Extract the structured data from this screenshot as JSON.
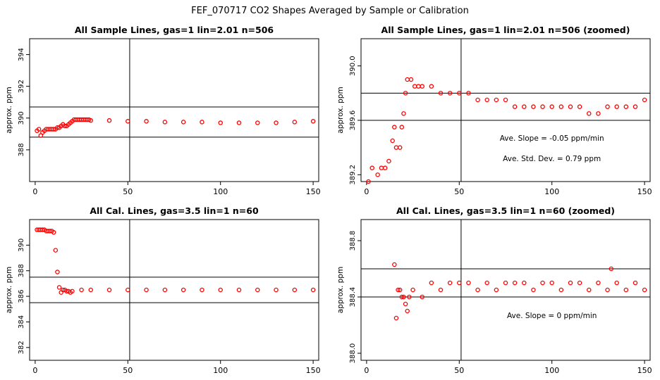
{
  "figure_title": "FEF_070717  CO2 Shapes Averaged by Sample or Calibration",
  "chart_data": [
    {
      "type": "scatter",
      "title": "All Sample Lines, gas=1 lin=2.01 n=506",
      "ylabel": "approx. ppm",
      "xlim": [
        -3,
        153
      ],
      "ylim": [
        386,
        395
      ],
      "xticks": [
        0,
        50,
        100,
        150
      ],
      "xtick_labels": [
        "0",
        "50",
        "100",
        "150"
      ],
      "yticks": [
        388,
        390,
        392,
        394
      ],
      "ytick_labels": [
        "388",
        "390",
        "392",
        "394"
      ],
      "hlines": [
        388.8,
        390.7
      ],
      "vline": 51,
      "marker_color": "#ff0000",
      "series": [
        {
          "x": [
            1,
            2,
            3,
            4,
            5,
            6,
            7,
            8,
            9,
            10,
            11,
            12,
            13,
            14,
            15,
            16,
            17,
            18,
            19,
            20,
            21,
            22,
            23,
            24,
            25,
            26,
            27,
            28,
            29,
            30,
            40,
            50,
            60,
            70,
            80,
            90,
            100,
            110,
            120,
            130,
            140,
            150
          ],
          "y": [
            389.2,
            389.3,
            388.9,
            389.1,
            389.2,
            389.3,
            389.3,
            389.3,
            389.3,
            389.3,
            389.3,
            389.4,
            389.4,
            389.5,
            389.6,
            389.5,
            389.5,
            389.6,
            389.7,
            389.8,
            389.9,
            389.9,
            389.9,
            389.9,
            389.9,
            389.9,
            389.9,
            389.9,
            389.9,
            389.85,
            389.85,
            389.8,
            389.8,
            389.75,
            389.75,
            389.75,
            389.7,
            389.7,
            389.7,
            389.7,
            389.75,
            389.8
          ]
        }
      ],
      "annotations": []
    },
    {
      "type": "scatter",
      "title": "All Sample Lines, gas=1 lin=2.01 n=506 (zoomed)",
      "ylabel": "approx. ppm",
      "xlim": [
        -3,
        153
      ],
      "ylim": [
        389.15,
        390.2
      ],
      "xticks": [
        0,
        50,
        100,
        150
      ],
      "xtick_labels": [
        "0",
        "50",
        "100",
        "150"
      ],
      "yticks": [
        389.2,
        389.6,
        390.0
      ],
      "ytick_labels": [
        "389.2",
        "389.6",
        "390.0"
      ],
      "hlines": [
        389.8,
        389.6
      ],
      "vline": 51,
      "marker_color": "#ff0000",
      "series": [
        {
          "x": [
            1,
            3,
            6,
            8,
            10,
            12,
            14,
            15,
            16,
            18,
            19,
            20,
            21,
            22,
            24,
            26,
            28,
            30,
            35,
            40,
            45,
            50,
            55,
            60,
            65,
            70,
            75,
            80,
            85,
            90,
            95,
            100,
            105,
            110,
            115,
            120,
            125,
            130,
            135,
            140,
            145,
            150
          ],
          "y": [
            389.15,
            389.25,
            389.2,
            389.25,
            389.25,
            389.3,
            389.45,
            389.55,
            389.4,
            389.4,
            389.55,
            389.65,
            389.8,
            389.9,
            389.9,
            389.85,
            389.85,
            389.85,
            389.85,
            389.8,
            389.8,
            389.8,
            389.8,
            389.75,
            389.75,
            389.75,
            389.75,
            389.7,
            389.7,
            389.7,
            389.7,
            389.7,
            389.7,
            389.7,
            389.7,
            389.65,
            389.65,
            389.7,
            389.7,
            389.7,
            389.7,
            389.75
          ]
        }
      ],
      "annotations": [
        {
          "text": "Ave. Slope = -0.05 ppm/min",
          "x": 100,
          "y": 389.45
        },
        {
          "text": "Ave. Std. Dev. = 0.79 ppm",
          "x": 100,
          "y": 389.3
        }
      ]
    },
    {
      "type": "scatter",
      "title": "All Cal. Lines, gas=3.5 lin=1 n=60",
      "ylabel": "approx. ppm",
      "xlim": [
        -3,
        153
      ],
      "ylim": [
        381,
        392
      ],
      "xticks": [
        0,
        50,
        100,
        150
      ],
      "xtick_labels": [
        "0",
        "50",
        "100",
        "150"
      ],
      "yticks": [
        382,
        384,
        386,
        388,
        390
      ],
      "ytick_labels": [
        "382",
        "384",
        "386",
        "388",
        "390"
      ],
      "hlines": [
        387.5,
        385.5
      ],
      "vline": 51,
      "marker_color": "#ff0000",
      "series": [
        {
          "x": [
            1,
            2,
            3,
            4,
            5,
            6,
            7,
            8,
            9,
            10,
            11,
            12,
            13,
            14,
            15,
            16,
            17,
            18,
            19,
            20,
            25,
            30,
            40,
            50,
            60,
            70,
            80,
            90,
            100,
            110,
            120,
            130,
            140,
            150
          ],
          "y": [
            391.2,
            391.2,
            391.2,
            391.2,
            391.2,
            391.1,
            391.1,
            391.1,
            391.1,
            391.0,
            389.6,
            387.9,
            386.7,
            386.3,
            386.5,
            386.5,
            386.4,
            386.4,
            386.3,
            386.4,
            386.5,
            386.5,
            386.5,
            386.5,
            386.5,
            386.5,
            386.5,
            386.5,
            386.5,
            386.5,
            386.5,
            386.5,
            386.5,
            386.5
          ]
        }
      ],
      "annotations": []
    },
    {
      "type": "scatter",
      "title": "All Cal. Lines, gas=3.5 lin=1 n=60 (zoomed)",
      "ylabel": "approx. ppm",
      "xlim": [
        -3,
        153
      ],
      "ylim": [
        387.95,
        388.95
      ],
      "xticks": [
        0,
        50,
        100,
        150
      ],
      "xtick_labels": [
        "0",
        "50",
        "100",
        "150"
      ],
      "yticks": [
        388.0,
        388.4,
        388.8
      ],
      "ytick_labels": [
        "388.0",
        "388.4",
        "388.8"
      ],
      "hlines": [
        388.6,
        388.4
      ],
      "vline": 51,
      "marker_color": "#ff0000",
      "series": [
        {
          "x": [
            15,
            16,
            17,
            18,
            19,
            20,
            21,
            22,
            23,
            25,
            30,
            35,
            40,
            45,
            50,
            55,
            60,
            65,
            70,
            75,
            80,
            85,
            90,
            95,
            100,
            105,
            110,
            115,
            120,
            125,
            130,
            132,
            135,
            140,
            145,
            150
          ],
          "y": [
            388.63,
            388.25,
            388.45,
            388.45,
            388.4,
            388.4,
            388.35,
            388.3,
            388.4,
            388.45,
            388.4,
            388.5,
            388.45,
            388.5,
            388.5,
            388.5,
            388.45,
            388.5,
            388.45,
            388.5,
            388.5,
            388.5,
            388.45,
            388.5,
            388.5,
            388.45,
            388.5,
            388.5,
            388.45,
            388.5,
            388.45,
            388.6,
            388.5,
            388.45,
            388.5,
            388.45
          ]
        }
      ],
      "annotations": [
        {
          "text": "Ave. Slope = 0 ppm/min",
          "x": 100,
          "y": 388.25
        }
      ]
    }
  ]
}
